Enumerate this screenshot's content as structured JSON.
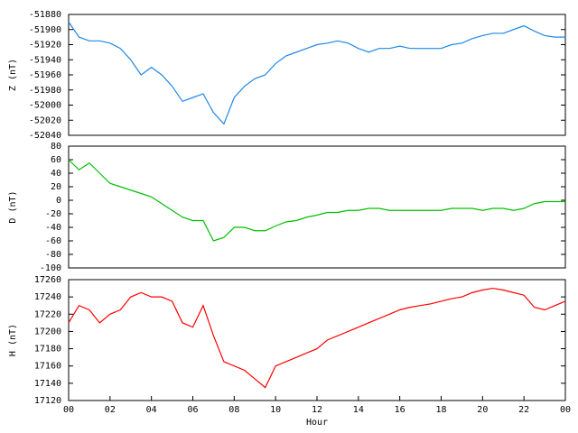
{
  "chart_data": [
    {
      "type": "line",
      "ylabel": "Z (nT)",
      "xlim": [
        0,
        24
      ],
      "ylim": [
        -52040,
        -51880
      ],
      "yticks": [
        -52040,
        -52020,
        -52000,
        -51980,
        -51960,
        -51940,
        -51920,
        -51900,
        -51880
      ],
      "x": [
        0,
        0.5,
        1,
        1.5,
        2,
        2.5,
        3,
        3.5,
        4,
        4.5,
        5,
        5.5,
        6,
        6.5,
        7,
        7.5,
        8,
        8.5,
        9,
        9.5,
        10,
        10.5,
        11,
        11.5,
        12,
        12.5,
        13,
        13.5,
        14,
        14.5,
        15,
        15.5,
        16,
        16.5,
        17,
        17.5,
        18,
        18.5,
        19,
        19.5,
        20,
        20.5,
        21,
        21.5,
        22,
        22.5,
        23,
        23.5,
        24
      ],
      "series": [
        {
          "color": "#1e88e5",
          "values": [
            -51890,
            -51910,
            -51915,
            -51915,
            -51918,
            -51925,
            -51940,
            -51960,
            -51950,
            -51960,
            -51975,
            -51995,
            -51990,
            -51985,
            -52010,
            -52025,
            -51990,
            -51975,
            -51965,
            -51960,
            -51945,
            -51935,
            -51930,
            -51925,
            -51920,
            -51918,
            -51915,
            -51918,
            -51925,
            -51930,
            -51925,
            -51925,
            -51922,
            -51925,
            -51925,
            -51925,
            -51925,
            -51920,
            -51918,
            -51912,
            -51908,
            -51905,
            -51905,
            -51900,
            -51895,
            -51902,
            -51908,
            -51910,
            -51910
          ]
        }
      ]
    },
    {
      "type": "line",
      "ylabel": "D (nT)",
      "xlim": [
        0,
        24
      ],
      "ylim": [
        -100,
        80
      ],
      "yticks": [
        -100,
        -80,
        -60,
        -40,
        -20,
        0,
        20,
        40,
        60,
        80
      ],
      "x": [
        0,
        0.5,
        1,
        1.5,
        2,
        2.5,
        3,
        3.5,
        4,
        4.5,
        5,
        5.5,
        6,
        6.5,
        7,
        7.5,
        8,
        8.5,
        9,
        9.5,
        10,
        10.5,
        11,
        11.5,
        12,
        12.5,
        13,
        13.5,
        14,
        14.5,
        15,
        15.5,
        16,
        16.5,
        17,
        17.5,
        18,
        18.5,
        19,
        19.5,
        20,
        20.5,
        21,
        21.5,
        22,
        22.5,
        23,
        23.5,
        24
      ],
      "series": [
        {
          "color": "#00c000",
          "values": [
            60,
            45,
            55,
            40,
            25,
            20,
            15,
            10,
            5,
            -5,
            -15,
            -25,
            -30,
            -30,
            -60,
            -55,
            -40,
            -40,
            -45,
            -45,
            -38,
            -32,
            -30,
            -25,
            -22,
            -18,
            -18,
            -15,
            -15,
            -12,
            -12,
            -15,
            -15,
            -15,
            -15,
            -15,
            -15,
            -12,
            -12,
            -12,
            -15,
            -12,
            -12,
            -15,
            -12,
            -5,
            -2,
            -2,
            -2
          ]
        }
      ]
    },
    {
      "type": "line",
      "ylabel": "H (nT)",
      "xlabel": "Hour",
      "xlim": [
        0,
        24
      ],
      "ylim": [
        17120,
        17260
      ],
      "yticks": [
        17120,
        17140,
        17160,
        17180,
        17200,
        17220,
        17240,
        17260
      ],
      "xticks": [
        {
          "value": 0,
          "label": "00"
        },
        {
          "value": 2,
          "label": "02"
        },
        {
          "value": 4,
          "label": "04"
        },
        {
          "value": 6,
          "label": "06"
        },
        {
          "value": 8,
          "label": "08"
        },
        10,
        12,
        14,
        16,
        18,
        20,
        22,
        {
          "value": 24,
          "label": "00"
        }
      ],
      "x": [
        0,
        0.5,
        1,
        1.5,
        2,
        2.5,
        3,
        3.5,
        4,
        4.5,
        5,
        5.5,
        6,
        6.5,
        7,
        7.5,
        8,
        8.5,
        9,
        9.5,
        10,
        10.5,
        11,
        11.5,
        12,
        12.5,
        13,
        13.5,
        14,
        14.5,
        15,
        15.5,
        16,
        16.5,
        17,
        17.5,
        18,
        18.5,
        19,
        19.5,
        20,
        20.5,
        21,
        21.5,
        22,
        22.5,
        23,
        23.5,
        24
      ],
      "series": [
        {
          "color": "#ff0000",
          "values": [
            17210,
            17230,
            17225,
            17210,
            17220,
            17225,
            17240,
            17245,
            17240,
            17240,
            17235,
            17210,
            17205,
            17230,
            17195,
            17165,
            17160,
            17155,
            17145,
            17135,
            17160,
            17165,
            17170,
            17175,
            17180,
            17190,
            17195,
            17200,
            17205,
            17210,
            17215,
            17220,
            17225,
            17228,
            17230,
            17232,
            17235,
            17238,
            17240,
            17245,
            17248,
            17250,
            17248,
            17245,
            17242,
            17228,
            17225,
            17230,
            17235
          ]
        }
      ]
    }
  ]
}
